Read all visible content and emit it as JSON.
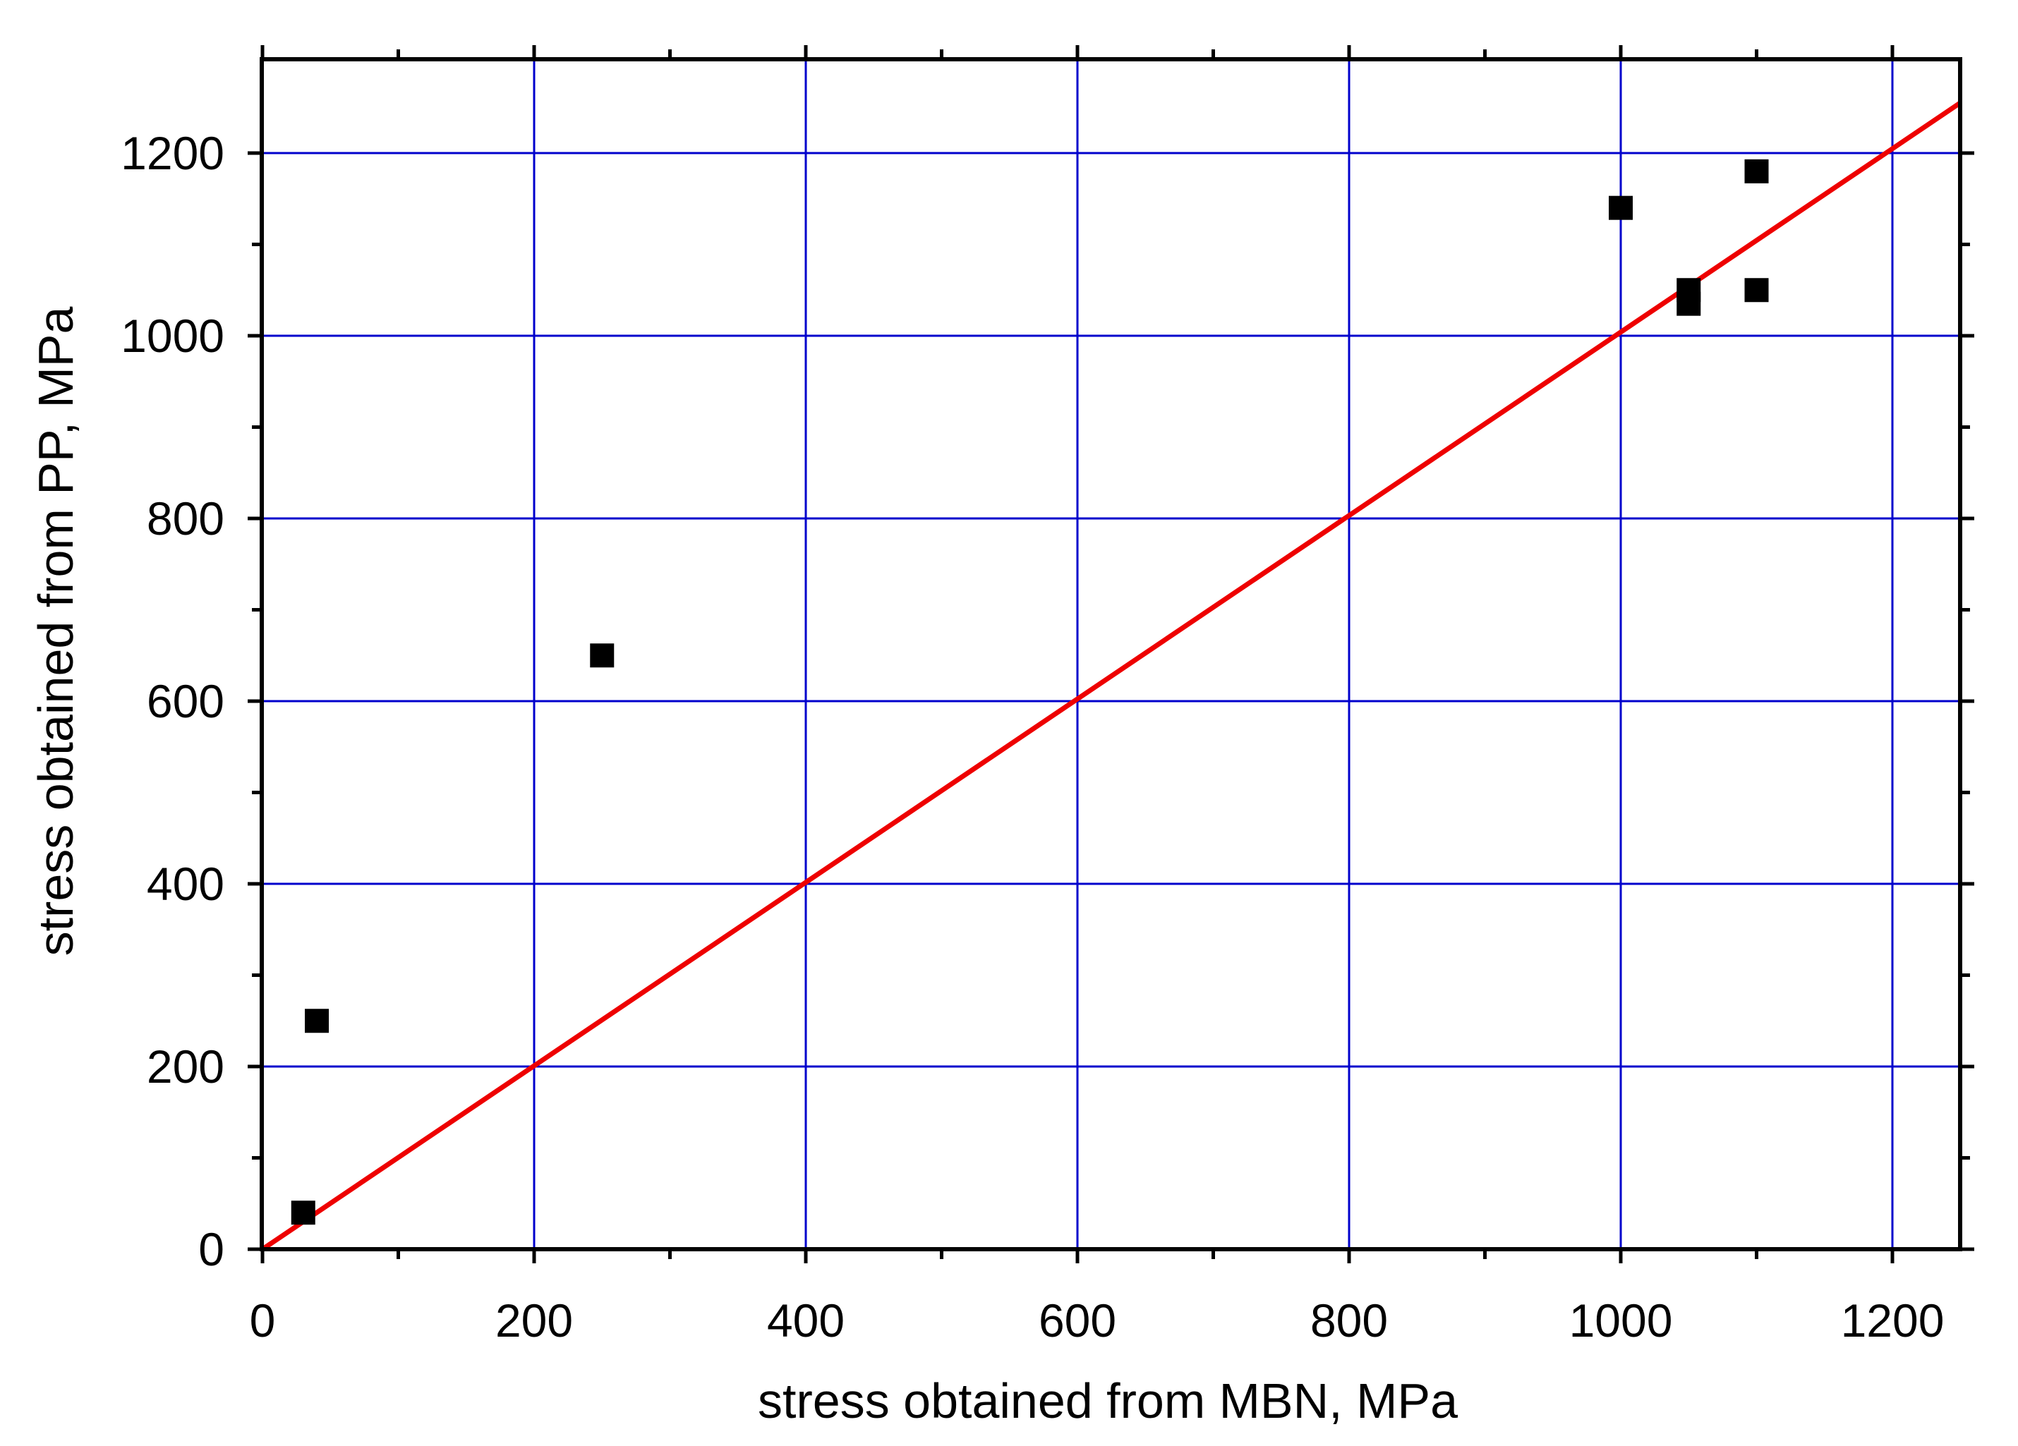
{
  "chart_data": {
    "type": "scatter",
    "xlabel": "stress obtained from MBN, MPa",
    "ylabel": "stress obtained from PP, MPa",
    "xlim": [
      0,
      1250
    ],
    "ylim": [
      0,
      1300
    ],
    "x_ticks": [
      0,
      200,
      400,
      600,
      800,
      1000,
      1200
    ],
    "y_ticks": [
      0,
      200,
      400,
      600,
      800,
      1000,
      1200
    ],
    "x_tick_labels": [
      "0",
      "200",
      "400",
      "600",
      "800",
      "1000",
      "1200"
    ],
    "y_tick_labels": [
      "0",
      "200",
      "400",
      "600",
      "800",
      "1000",
      "1200"
    ],
    "x_minor_ticks": [
      100,
      300,
      500,
      700,
      900,
      1100
    ],
    "y_minor_ticks": [
      100,
      300,
      500,
      700,
      900,
      1100
    ],
    "grid": true,
    "legend": "none",
    "series": [
      {
        "type": "scatter",
        "marker": "square",
        "x": [
          30,
          40,
          250,
          1000,
          1050,
          1050,
          1100,
          1100
        ],
        "y": [
          40,
          250,
          650,
          1140,
          1035,
          1050,
          1180,
          1050
        ]
      },
      {
        "type": "line",
        "x": [
          0,
          1250
        ],
        "y": [
          0,
          1255
        ]
      }
    ]
  },
  "colors": {
    "grid": "#0000cc",
    "fit_line": "#ee0000",
    "marker": "#000000",
    "axes": "#000000"
  }
}
